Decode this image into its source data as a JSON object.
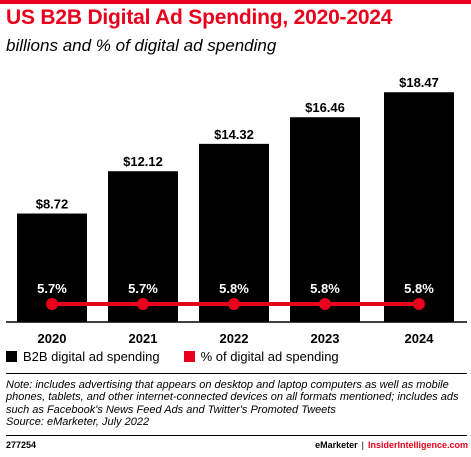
{
  "header": {
    "title": "US B2B Digital Ad Spending, 2020-2024",
    "subtitle": "billions and % of digital ad spending"
  },
  "colors": {
    "accent": "#e8001c",
    "bar": "#000000"
  },
  "legend": {
    "bar_label": "B2B digital ad spending",
    "line_label": "% of digital ad spending"
  },
  "chart_data": {
    "type": "bar",
    "categories": [
      "2020",
      "2021",
      "2022",
      "2023",
      "2024"
    ],
    "series": [
      {
        "name": "B2B digital ad spending",
        "type": "bar",
        "values": [
          8.72,
          12.12,
          14.32,
          16.46,
          18.47
        ],
        "labels": [
          "$8.72",
          "$12.12",
          "$14.32",
          "$16.46",
          "$18.47"
        ]
      },
      {
        "name": "% of digital ad spending",
        "type": "line",
        "values": [
          5.7,
          5.7,
          5.8,
          5.8,
          5.8
        ],
        "labels": [
          "5.7%",
          "5.7%",
          "5.8%",
          "5.8%",
          "5.8%"
        ]
      }
    ],
    "ylim": [
      0,
      20
    ]
  },
  "note": "Note: includes advertising that appears on desktop and laptop computers as well as mobile phones, tablets, and other internet-connected devices on all formats mentioned; includes ads such as Facebook's News Feed Ads and Twitter's Promoted Tweets",
  "source": "Source: eMarketer, July 2022",
  "footer": {
    "chart_id": "277254",
    "brand_left": "eMarketer",
    "separator": "|",
    "brand_right": "InsiderIntelligence.com"
  }
}
